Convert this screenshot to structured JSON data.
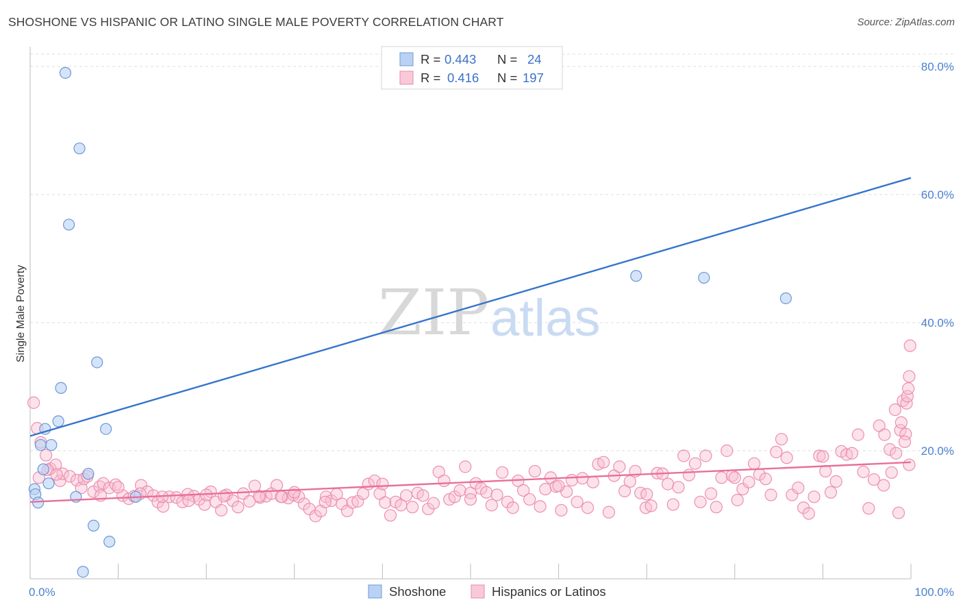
{
  "header": {
    "title": "SHOSHONE VS HISPANIC OR LATINO SINGLE MALE POVERTY CORRELATION CHART",
    "source": "Source: ZipAtlas.com"
  },
  "watermark": {
    "part1": "ZIP",
    "part2": "atlas"
  },
  "legend": {
    "series1": {
      "r_label": "R =",
      "r_value": "0.443",
      "n_label": "N =",
      "n_value": "24"
    },
    "series2": {
      "r_label": "R =",
      "r_value": "0.416",
      "n_label": "N =",
      "n_value": "197"
    }
  },
  "chart_data": {
    "type": "scatter",
    "title": "SHOSHONE VS HISPANIC OR LATINO SINGLE MALE POVERTY CORRELATION CHART",
    "xlabel": "",
    "ylabel": "Single Male Poverty",
    "xlim": [
      0,
      100
    ],
    "ylim": [
      0,
      80
    ],
    "x_tick_labels": [
      "0.0%",
      "100.0%"
    ],
    "y_tick_values": [
      20,
      40,
      60,
      80
    ],
    "y_tick_labels": [
      "20.0%",
      "40.0%",
      "60.0%",
      "80.0%"
    ],
    "grid": true,
    "colors": {
      "shoshone": "#5b8fd6",
      "hispanic": "#ee87a6",
      "shoshone_line": "#3574cc",
      "hispanic_line": "#e86f98"
    },
    "series": [
      {
        "name": "Shoshone",
        "r": 0.443,
        "n": 24,
        "trend": {
          "x": [
            0,
            100
          ],
          "y": [
            22.3,
            62.6
          ]
        },
        "points": [
          [
            4.0,
            79.0
          ],
          [
            5.6,
            67.2
          ],
          [
            4.4,
            55.3
          ],
          [
            76.5,
            47.0
          ],
          [
            68.8,
            47.3
          ],
          [
            85.8,
            43.8
          ],
          [
            7.6,
            33.8
          ],
          [
            3.5,
            29.8
          ],
          [
            3.2,
            24.6
          ],
          [
            1.7,
            23.4
          ],
          [
            8.6,
            23.4
          ],
          [
            1.2,
            20.9
          ],
          [
            2.4,
            20.9
          ],
          [
            6.6,
            16.4
          ],
          [
            1.5,
            17.1
          ],
          [
            0.5,
            14.0
          ],
          [
            0.6,
            13.2
          ],
          [
            2.1,
            14.9
          ],
          [
            5.2,
            12.8
          ],
          [
            12.0,
            12.8
          ],
          [
            0.9,
            11.9
          ],
          [
            7.2,
            8.3
          ],
          [
            9.0,
            5.8
          ],
          [
            6.0,
            1.1
          ]
        ]
      },
      {
        "name": "Hispanics or Latinos",
        "r": 0.416,
        "n": 197,
        "trend": {
          "x": [
            0,
            100
          ],
          "y": [
            12.0,
            18.2
          ]
        },
        "points": [
          [
            0.4,
            27.5
          ],
          [
            0.8,
            23.5
          ],
          [
            1.2,
            21.3
          ],
          [
            1.8,
            19.3
          ],
          [
            2.3,
            17.2
          ],
          [
            2.9,
            17.8
          ],
          [
            3.4,
            15.3
          ],
          [
            3.7,
            16.4
          ],
          [
            4.5,
            16.0
          ],
          [
            5.3,
            15.4
          ],
          [
            5.8,
            14.2
          ],
          [
            6.1,
            15.6
          ],
          [
            7.2,
            13.6
          ],
          [
            7.9,
            14.4
          ],
          [
            8.3,
            14.9
          ],
          [
            9.0,
            14.2
          ],
          [
            9.7,
            14.7
          ],
          [
            10.5,
            13.0
          ],
          [
            11.2,
            12.5
          ],
          [
            11.8,
            12.9
          ],
          [
            12.6,
            14.6
          ],
          [
            13.3,
            13.6
          ],
          [
            14.0,
            13.0
          ],
          [
            14.5,
            12.0
          ],
          [
            15.1,
            11.3
          ],
          [
            15.8,
            12.8
          ],
          [
            16.6,
            12.7
          ],
          [
            17.3,
            12.0
          ],
          [
            17.9,
            13.2
          ],
          [
            18.6,
            12.9
          ],
          [
            19.2,
            12.4
          ],
          [
            19.8,
            11.6
          ],
          [
            20.5,
            13.6
          ],
          [
            21.1,
            12.0
          ],
          [
            21.7,
            10.7
          ],
          [
            22.3,
            13.1
          ],
          [
            23.0,
            12.2
          ],
          [
            23.6,
            11.2
          ],
          [
            24.2,
            13.3
          ],
          [
            24.9,
            12.1
          ],
          [
            25.5,
            14.5
          ],
          [
            26.1,
            12.7
          ],
          [
            26.8,
            12.9
          ],
          [
            27.4,
            13.3
          ],
          [
            28.0,
            14.6
          ],
          [
            28.6,
            12.8
          ],
          [
            29.3,
            12.6
          ],
          [
            29.9,
            13.1
          ],
          [
            30.5,
            12.8
          ],
          [
            31.1,
            11.7
          ],
          [
            31.7,
            10.9
          ],
          [
            32.4,
            9.8
          ],
          [
            33.0,
            10.6
          ],
          [
            33.6,
            12.8
          ],
          [
            34.2,
            12.2
          ],
          [
            34.8,
            13.2
          ],
          [
            35.4,
            11.7
          ],
          [
            36.0,
            10.6
          ],
          [
            36.6,
            11.9
          ],
          [
            37.2,
            12.1
          ],
          [
            37.8,
            13.3
          ],
          [
            38.4,
            14.8
          ],
          [
            39.1,
            15.3
          ],
          [
            39.7,
            13.3
          ],
          [
            40.3,
            11.9
          ],
          [
            40.9,
            9.9
          ],
          [
            41.5,
            12.0
          ],
          [
            42.1,
            11.5
          ],
          [
            42.7,
            13.0
          ],
          [
            43.4,
            11.2
          ],
          [
            44.0,
            13.4
          ],
          [
            44.6,
            13.0
          ],
          [
            45.2,
            10.9
          ],
          [
            45.8,
            11.8
          ],
          [
            46.4,
            16.7
          ],
          [
            47.0,
            15.3
          ],
          [
            47.6,
            12.4
          ],
          [
            48.2,
            12.8
          ],
          [
            48.8,
            13.8
          ],
          [
            49.4,
            17.5
          ],
          [
            50.0,
            13.4
          ],
          [
            50.6,
            14.9
          ],
          [
            51.2,
            14.1
          ],
          [
            51.8,
            13.5
          ],
          [
            52.4,
            11.5
          ],
          [
            53.0,
            13.1
          ],
          [
            53.6,
            16.6
          ],
          [
            54.2,
            12.0
          ],
          [
            54.8,
            11.1
          ],
          [
            55.4,
            15.3
          ],
          [
            56.0,
            13.8
          ],
          [
            56.7,
            12.4
          ],
          [
            57.3,
            16.8
          ],
          [
            57.9,
            11.3
          ],
          [
            58.5,
            14.0
          ],
          [
            59.1,
            15.8
          ],
          [
            59.7,
            14.4
          ],
          [
            60.3,
            10.7
          ],
          [
            60.9,
            13.6
          ],
          [
            61.5,
            15.4
          ],
          [
            62.1,
            12.0
          ],
          [
            62.7,
            15.7
          ],
          [
            63.3,
            11.1
          ],
          [
            63.9,
            15.1
          ],
          [
            64.5,
            17.9
          ],
          [
            65.1,
            18.2
          ],
          [
            65.7,
            10.4
          ],
          [
            66.3,
            16.1
          ],
          [
            66.9,
            17.5
          ],
          [
            67.5,
            13.7
          ],
          [
            68.1,
            15.2
          ],
          [
            68.7,
            16.8
          ],
          [
            69.3,
            13.4
          ],
          [
            69.9,
            11.1
          ],
          [
            70.5,
            11.4
          ],
          [
            71.2,
            16.5
          ],
          [
            71.8,
            16.4
          ],
          [
            72.4,
            14.8
          ],
          [
            73.0,
            11.6
          ],
          [
            73.6,
            14.3
          ],
          [
            74.2,
            19.2
          ],
          [
            74.8,
            16.2
          ],
          [
            75.5,
            18.0
          ],
          [
            76.1,
            12.0
          ],
          [
            76.7,
            19.2
          ],
          [
            77.3,
            13.3
          ],
          [
            77.9,
            11.2
          ],
          [
            78.5,
            15.8
          ],
          [
            79.1,
            20.0
          ],
          [
            79.7,
            16.1
          ],
          [
            80.3,
            12.3
          ],
          [
            80.9,
            14.0
          ],
          [
            81.6,
            15.1
          ],
          [
            82.2,
            18.0
          ],
          [
            82.8,
            16.3
          ],
          [
            83.5,
            15.6
          ],
          [
            84.1,
            13.1
          ],
          [
            84.7,
            19.8
          ],
          [
            85.3,
            21.8
          ],
          [
            85.9,
            18.9
          ],
          [
            86.5,
            13.1
          ],
          [
            87.2,
            14.2
          ],
          [
            87.8,
            11.1
          ],
          [
            88.4,
            10.2
          ],
          [
            89.0,
            12.8
          ],
          [
            89.6,
            19.2
          ],
          [
            90.3,
            16.8
          ],
          [
            90.9,
            13.5
          ],
          [
            91.5,
            15.2
          ],
          [
            92.1,
            19.9
          ],
          [
            92.7,
            19.4
          ],
          [
            93.3,
            19.6
          ],
          [
            94.0,
            22.5
          ],
          [
            94.6,
            16.7
          ],
          [
            95.2,
            11.0
          ],
          [
            95.8,
            15.5
          ],
          [
            96.4,
            23.9
          ],
          [
            97.0,
            22.5
          ],
          [
            97.6,
            20.2
          ],
          [
            98.2,
            26.4
          ],
          [
            98.8,
            23.2
          ],
          [
            99.4,
            22.6
          ],
          [
            99.8,
            17.8
          ],
          [
            96.9,
            14.6
          ],
          [
            97.8,
            16.6
          ],
          [
            98.3,
            19.6
          ],
          [
            98.6,
            10.3
          ],
          [
            98.9,
            24.4
          ],
          [
            99.1,
            27.8
          ],
          [
            99.3,
            21.4
          ],
          [
            99.5,
            27.4
          ],
          [
            99.6,
            28.5
          ],
          [
            99.7,
            29.7
          ],
          [
            99.8,
            31.6
          ],
          [
            99.9,
            36.4
          ],
          [
            20.0,
            13.1
          ],
          [
            30.0,
            13.5
          ],
          [
            40.0,
            14.8
          ],
          [
            50.0,
            12.4
          ],
          [
            60.0,
            14.5
          ],
          [
            70.0,
            13.2
          ],
          [
            80.0,
            15.8
          ],
          [
            90.0,
            19.1
          ],
          [
            1.0,
            15.8
          ],
          [
            2.0,
            17.0
          ],
          [
            3.0,
            16.3
          ],
          [
            6.5,
            16.0
          ],
          [
            8.0,
            13.0
          ],
          [
            10.0,
            14.3
          ],
          [
            12.5,
            13.3
          ],
          [
            15.0,
            12.8
          ],
          [
            18.0,
            12.2
          ],
          [
            22.0,
            12.9
          ],
          [
            26.0,
            12.9
          ],
          [
            28.5,
            12.8
          ],
          [
            33.5,
            12.0
          ]
        ]
      }
    ]
  },
  "bottom_legend": {
    "item1": "Shoshone",
    "item2": "Hispanics or Latinos"
  }
}
